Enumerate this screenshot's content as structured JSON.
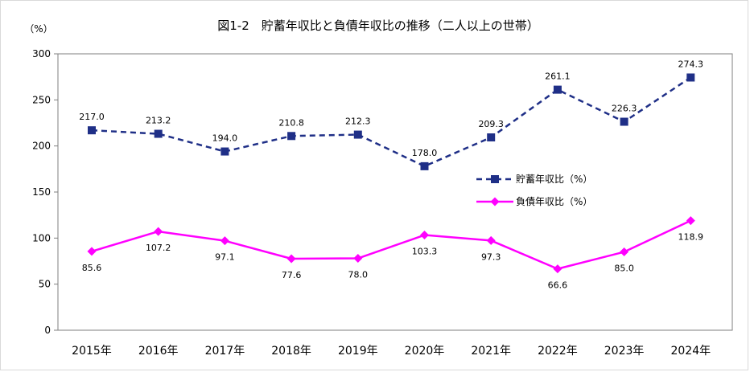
{
  "chart_data": {
    "type": "line",
    "title": "図1-2　貯蓄年収比と負債年収比の推移（二人以上の世帯）",
    "ylabel": "（%）",
    "ylim": [
      0,
      300
    ],
    "yticks": [
      0,
      50,
      100,
      150,
      200,
      250,
      300
    ],
    "grid": false,
    "legend_placement": "right",
    "categories": [
      "2015年",
      "2016年",
      "2017年",
      "2018年",
      "2019年",
      "2020年",
      "2021年",
      "2022年",
      "2023年",
      "2024年"
    ],
    "series": [
      {
        "name": "貯蓄年収比（%）",
        "values": [
          217.0,
          213.2,
          194.0,
          210.8,
          212.3,
          178.0,
          209.3,
          261.1,
          226.3,
          274.3
        ],
        "labels": [
          "217.0",
          "213.2",
          "194.0",
          "210.8",
          "212.3",
          "178.0",
          "209.3",
          "261.1",
          "226.3",
          "274.3"
        ],
        "color": "#1f2f87",
        "line_style": "dashed",
        "marker": "square",
        "label_position": "above"
      },
      {
        "name": "負債年収比（%）",
        "values": [
          85.6,
          107.2,
          97.1,
          77.6,
          78.0,
          103.3,
          97.3,
          66.6,
          85.0,
          118.9
        ],
        "labels": [
          "85.6",
          "107.2",
          "97.1",
          "77.6",
          "78.0",
          "103.3",
          "97.3",
          "66.6",
          "85.0",
          "118.9"
        ],
        "color": "#ff00ff",
        "line_style": "solid",
        "marker": "diamond",
        "label_position": "below"
      }
    ]
  }
}
